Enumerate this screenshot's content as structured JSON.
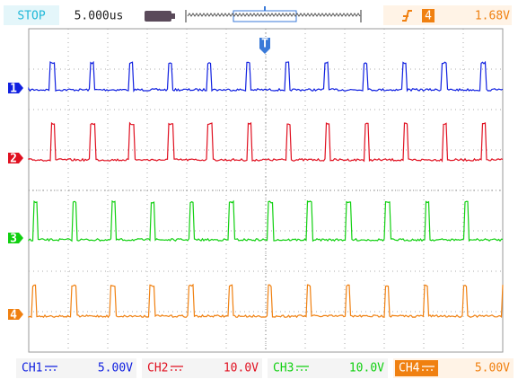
{
  "status": "STOP",
  "timebase": "5.000us",
  "trigger": {
    "marker": "T",
    "channel": "4",
    "level": "1.68V"
  },
  "channels": [
    {
      "label": "1",
      "name": "CH1",
      "scale": "5.00V",
      "color": "#1020e0"
    },
    {
      "label": "2",
      "name": "CH2",
      "scale": "10.0V",
      "color": "#e01020"
    },
    {
      "label": "3",
      "name": "CH3",
      "scale": "10.0V",
      "color": "#10d010"
    },
    {
      "label": "4",
      "name": "CH4",
      "scale": "5.00V",
      "color": "#f08010"
    }
  ]
}
